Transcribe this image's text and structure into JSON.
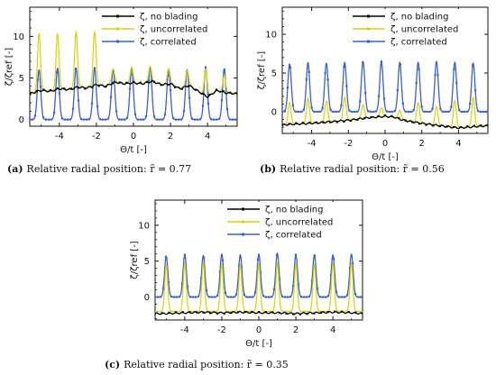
{
  "colors": {
    "no_blading": "#000000",
    "uncorrelated": "#d6d600",
    "correlated": "#3b5fd6",
    "background": "#ffffff"
  },
  "chart_data": [
    {
      "type": "line",
      "xlabel": "Θ/t [-]",
      "ylabel": "ζ/ζref [-]",
      "xlim": [
        -5.6,
        5.6
      ],
      "ylim": [
        -0.8,
        13.5
      ],
      "xticks": [
        "-4",
        "-2",
        "0",
        "2",
        "4"
      ],
      "xtick_values": [
        -4,
        -2,
        0,
        2,
        4
      ],
      "yticks": [
        "0",
        "5",
        "10"
      ],
      "ytick_values": [
        0,
        5,
        10
      ],
      "legend": "top-right",
      "caption": {
        "prefix": "(a)",
        "text": "Relative radial position: r̃ = 0.77"
      },
      "series": [
        {
          "name": "ζ, no blading",
          "role": "no_blading",
          "x": [
            -5.6,
            -5.0,
            -4.5,
            -4.0,
            -3.5,
            -3.0,
            -2.5,
            -2.0,
            -1.5,
            -1.0,
            -0.5,
            0.0,
            0.5,
            1.0,
            1.5,
            2.0,
            2.5,
            3.0,
            3.5,
            4.0,
            4.5,
            5.0,
            5.6
          ],
          "y": [
            3.1,
            3.5,
            3.4,
            3.7,
            3.6,
            3.9,
            3.8,
            4.2,
            4.0,
            4.5,
            4.3,
            4.4,
            4.3,
            4.6,
            4.2,
            4.3,
            3.7,
            4.1,
            3.4,
            2.7,
            3.5,
            3.2,
            3.1
          ]
        },
        {
          "name": "ζ, uncorrelated",
          "role": "uncorrelated",
          "peaks": [
            -5.1,
            -4.1,
            -3.1,
            -2.1,
            -1.1,
            -0.1,
            0.9,
            1.9,
            2.9,
            3.9,
            4.9
          ],
          "peak_values": [
            10.4,
            10.4,
            10.6,
            10.6,
            6.1,
            6.3,
            6.4,
            6.1,
            5.9,
            6.1,
            5.3
          ],
          "baseline": "follows no-blading level"
        },
        {
          "name": "ζ, correlated",
          "role": "correlated",
          "peaks": [
            -5.1,
            -4.1,
            -3.1,
            -2.1,
            -1.1,
            -0.1,
            0.9,
            1.9,
            2.9,
            3.9,
            4.9
          ],
          "peak_values": [
            6.0,
            6.2,
            6.2,
            6.2,
            6.1,
            6.3,
            6.4,
            6.1,
            6.0,
            6.3,
            6.1
          ],
          "baseline": 0.0
        }
      ]
    },
    {
      "type": "line",
      "xlabel": "Θ/t [-]",
      "ylabel": "ζ/ζref [-]",
      "xlim": [
        -5.6,
        5.6
      ],
      "ylim": [
        -2.8,
        13.5
      ],
      "xticks": [
        "-4",
        "-2",
        "0",
        "2",
        "4"
      ],
      "xtick_values": [
        -4,
        -2,
        0,
        2,
        4
      ],
      "yticks": [
        "0",
        "5",
        "10"
      ],
      "ytick_values": [
        0,
        5,
        10
      ],
      "legend": "top-right",
      "caption": {
        "prefix": "(b)",
        "text": "Relative radial position: r̃ = 0.56"
      },
      "series": [
        {
          "name": "ζ, no blading",
          "role": "no_blading",
          "x": [
            -5.6,
            -5.0,
            -4.0,
            -3.0,
            -2.0,
            -1.0,
            0.0,
            0.5,
            1.0,
            2.0,
            3.0,
            4.0,
            5.0,
            5.6
          ],
          "y": [
            -1.7,
            -1.6,
            -1.5,
            -1.3,
            -1.1,
            -0.8,
            -0.6,
            -0.7,
            -1.1,
            -1.5,
            -1.8,
            -2.1,
            -1.9,
            -1.8
          ]
        },
        {
          "name": "ζ, uncorrelated",
          "role": "uncorrelated",
          "peaks": [
            -5.2,
            -4.2,
            -3.2,
            -2.2,
            -1.2,
            -0.2,
            0.8,
            1.8,
            2.8,
            3.8,
            4.8
          ],
          "peak_values": [
            1.2,
            1.8,
            1.4,
            1.9,
            0.9,
            0.5,
            0.2,
            1.2,
            0.7,
            1.5,
            1.9
          ],
          "baseline": "follows no-blading level"
        },
        {
          "name": "ζ, correlated",
          "role": "correlated",
          "peaks": [
            -5.2,
            -4.2,
            -3.2,
            -2.2,
            -1.2,
            -0.2,
            0.8,
            1.8,
            2.8,
            3.8,
            4.8
          ],
          "peak_values": [
            6.2,
            6.4,
            6.3,
            6.4,
            6.5,
            6.5,
            6.4,
            6.4,
            6.5,
            6.4,
            6.3
          ],
          "baseline": 0.0
        }
      ]
    },
    {
      "type": "line",
      "xlabel": "Θ/t [-]",
      "ylabel": "ζ/ζref [-]",
      "xlim": [
        -5.6,
        5.6
      ],
      "ylim": [
        -3.2,
        13.5
      ],
      "xticks": [
        "-4",
        "-2",
        "0",
        "2",
        "4"
      ],
      "xtick_values": [
        -4,
        -2,
        0,
        2,
        4
      ],
      "yticks": [
        "0",
        "5",
        "10"
      ],
      "ytick_values": [
        0,
        5,
        10
      ],
      "legend": "top-right",
      "caption": {
        "prefix": "(c)",
        "text": "Relative radial position: r̃ = 0.35"
      },
      "series": [
        {
          "name": "ζ, no blading",
          "role": "no_blading",
          "x": [
            -5.6,
            -5.0,
            -4.0,
            -3.0,
            -2.0,
            -1.0,
            0.0,
            1.0,
            2.0,
            3.0,
            4.0,
            5.0,
            5.6
          ],
          "y": [
            -2.3,
            -2.3,
            -2.2,
            -2.1,
            -2.2,
            -2.1,
            -2.2,
            -2.2,
            -2.3,
            -2.2,
            -2.1,
            -2.2,
            -2.3
          ]
        },
        {
          "name": "ζ, uncorrelated",
          "role": "uncorrelated",
          "peaks": [
            -5.0,
            -4.0,
            -3.0,
            -2.0,
            -1.0,
            0.0,
            1.0,
            2.0,
            3.0,
            4.0,
            5.0
          ],
          "peak_values": [
            4.6,
            4.8,
            4.8,
            4.7,
            4.6,
            4.6,
            4.8,
            4.7,
            4.6,
            4.7,
            4.8
          ],
          "baseline": -2.0
        },
        {
          "name": "ζ, correlated",
          "role": "correlated",
          "peaks": [
            -5.0,
            -4.0,
            -3.0,
            -2.0,
            -1.0,
            0.0,
            1.0,
            2.0,
            3.0,
            4.0,
            5.0
          ],
          "peak_values": [
            5.7,
            5.9,
            5.8,
            6.0,
            5.9,
            6.0,
            6.1,
            5.9,
            5.9,
            5.9,
            6.0
          ],
          "baseline": 0.0
        }
      ]
    }
  ]
}
